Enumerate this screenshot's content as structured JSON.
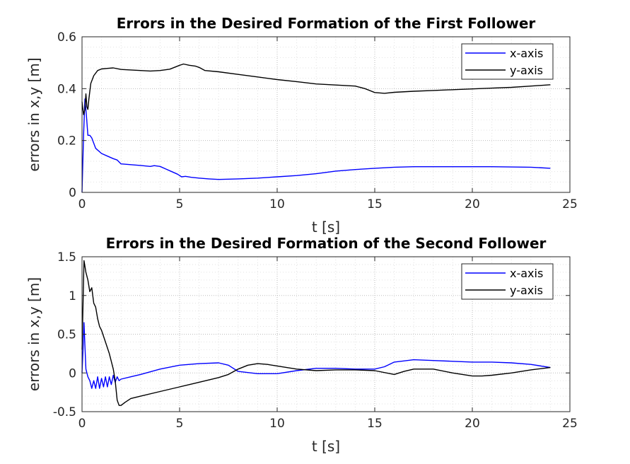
{
  "chart_data": [
    {
      "type": "line",
      "title": "Errors in the Desired Formation of the First Follower",
      "xlabel": "t [s]",
      "ylabel": "errors in x,y [m]",
      "xlim": [
        0,
        25
      ],
      "ylim": [
        0,
        0.6
      ],
      "xticks": [
        0,
        5,
        10,
        15,
        20,
        25
      ],
      "yticks": [
        0,
        0.2,
        0.4,
        0.6
      ],
      "xtick_labels": [
        "0",
        "5",
        "10",
        "15",
        "20",
        "25"
      ],
      "ytick_labels": [
        "0",
        "0.2",
        "0.4",
        "0.6"
      ],
      "grid": "major and minor, dotted",
      "legend_position": "top-right",
      "series": [
        {
          "name": "x-axis",
          "color": "#0000ff",
          "x": [
            0,
            0.08,
            0.15,
            0.22,
            0.3,
            0.4,
            0.5,
            0.7,
            1.0,
            1.3,
            1.6,
            1.8,
            2.0,
            2.5,
            3.0,
            3.5,
            3.7,
            4.0,
            4.3,
            4.6,
            4.9,
            5.1,
            5.3,
            5.6,
            6.0,
            6.5,
            7.0,
            8.0,
            9.0,
            10.0,
            11.0,
            12.0,
            13.0,
            14.0,
            15.0,
            16.0,
            17.0,
            18.0,
            19.0,
            20.0,
            21.0,
            22.0,
            23.0,
            24.0
          ],
          "y": [
            0.0,
            0.22,
            0.36,
            0.3,
            0.22,
            0.22,
            0.21,
            0.17,
            0.15,
            0.14,
            0.13,
            0.125,
            0.11,
            0.107,
            0.104,
            0.1,
            0.103,
            0.1,
            0.09,
            0.08,
            0.07,
            0.06,
            0.062,
            0.058,
            0.055,
            0.052,
            0.05,
            0.052,
            0.055,
            0.06,
            0.065,
            0.072,
            0.082,
            0.088,
            0.093,
            0.097,
            0.099,
            0.099,
            0.099,
            0.099,
            0.099,
            0.098,
            0.097,
            0.093
          ]
        },
        {
          "name": "y-axis",
          "color": "#000000",
          "x": [
            0,
            0.08,
            0.15,
            0.2,
            0.25,
            0.3,
            0.35,
            0.45,
            0.6,
            0.8,
            1.0,
            1.3,
            1.6,
            2.0,
            2.5,
            3.0,
            3.5,
            4.0,
            4.5,
            5.0,
            5.2,
            5.5,
            5.8,
            6.0,
            6.3,
            7.0,
            8.0,
            9.0,
            10.0,
            11.0,
            12.0,
            13.0,
            14.0,
            14.5,
            15.0,
            15.5,
            16.0,
            17.0,
            18.0,
            19.0,
            20.0,
            21.0,
            22.0,
            23.0,
            24.0
          ],
          "y": [
            0.35,
            0.3,
            0.32,
            0.38,
            0.33,
            0.32,
            0.36,
            0.42,
            0.45,
            0.47,
            0.476,
            0.478,
            0.48,
            0.474,
            0.472,
            0.47,
            0.468,
            0.47,
            0.475,
            0.49,
            0.495,
            0.49,
            0.487,
            0.482,
            0.47,
            0.465,
            0.455,
            0.445,
            0.435,
            0.427,
            0.418,
            0.414,
            0.41,
            0.4,
            0.385,
            0.382,
            0.386,
            0.39,
            0.393,
            0.396,
            0.399,
            0.402,
            0.405,
            0.41,
            0.415
          ]
        }
      ]
    },
    {
      "type": "line",
      "title": "Errors in the Desired Formation of the Second Follower",
      "xlabel": "t [s]",
      "ylabel": "errors in x,y [m]",
      "xlim": [
        0,
        25
      ],
      "ylim": [
        -0.5,
        1.5
      ],
      "xticks": [
        0,
        5,
        10,
        15,
        20,
        25
      ],
      "yticks": [
        -0.5,
        0,
        0.5,
        1,
        1.5
      ],
      "xtick_labels": [
        "0",
        "5",
        "10",
        "15",
        "20",
        "25"
      ],
      "ytick_labels": [
        "-0.5",
        "0",
        "0.5",
        "1",
        "1.5"
      ],
      "grid": "major and minor, dotted",
      "legend_position": "top-right",
      "series": [
        {
          "name": "x-axis",
          "color": "#0000ff",
          "x": [
            0,
            0.05,
            0.1,
            0.15,
            0.2,
            0.3,
            0.4,
            0.5,
            0.6,
            0.7,
            0.8,
            0.9,
            1.0,
            1.1,
            1.2,
            1.3,
            1.4,
            1.5,
            1.6,
            1.7,
            1.8,
            1.9,
            2.0,
            2.5,
            3.0,
            4.0,
            5.0,
            6.0,
            7.0,
            7.5,
            8.0,
            9.0,
            10.0,
            11.0,
            12.0,
            13.0,
            14.0,
            15.0,
            15.5,
            16.0,
            17.0,
            18.0,
            19.0,
            20.0,
            21.0,
            22.0,
            23.0,
            24.0
          ],
          "y": [
            0.0,
            0.3,
            0.65,
            0.35,
            0.05,
            -0.05,
            -0.1,
            -0.2,
            -0.1,
            -0.2,
            -0.05,
            -0.2,
            -0.07,
            -0.18,
            -0.05,
            -0.18,
            -0.05,
            -0.15,
            -0.03,
            -0.12,
            -0.05,
            -0.1,
            -0.08,
            -0.05,
            -0.02,
            0.05,
            0.1,
            0.12,
            0.13,
            0.1,
            0.02,
            -0.01,
            -0.01,
            0.03,
            0.06,
            0.06,
            0.05,
            0.05,
            0.08,
            0.14,
            0.17,
            0.16,
            0.15,
            0.14,
            0.14,
            0.13,
            0.11,
            0.07
          ]
        },
        {
          "name": "y-axis",
          "color": "#000000",
          "x": [
            0,
            0.1,
            0.2,
            0.3,
            0.4,
            0.5,
            0.6,
            0.7,
            0.8,
            0.9,
            1.0,
            1.2,
            1.4,
            1.6,
            1.7,
            1.8,
            1.9,
            2.0,
            2.2,
            2.5,
            3.0,
            4.0,
            5.0,
            6.0,
            7.0,
            7.5,
            8.0,
            8.5,
            9.0,
            9.5,
            10.0,
            11.0,
            12.0,
            13.0,
            14.0,
            15.0,
            16.0,
            16.5,
            17.0,
            18.0,
            19.0,
            20.0,
            20.5,
            21.0,
            22.0,
            23.0,
            24.0
          ],
          "y": [
            0.3,
            1.45,
            1.3,
            1.2,
            1.05,
            1.1,
            0.9,
            0.85,
            0.7,
            0.6,
            0.55,
            0.4,
            0.25,
            0.05,
            -0.1,
            -0.35,
            -0.42,
            -0.42,
            -0.38,
            -0.33,
            -0.3,
            -0.24,
            -0.18,
            -0.12,
            -0.06,
            -0.02,
            0.05,
            0.1,
            0.12,
            0.11,
            0.09,
            0.05,
            0.03,
            0.04,
            0.04,
            0.03,
            -0.02,
            0.02,
            0.05,
            0.05,
            0.0,
            -0.04,
            -0.04,
            -0.03,
            0.0,
            0.04,
            0.07
          ]
        }
      ]
    }
  ]
}
